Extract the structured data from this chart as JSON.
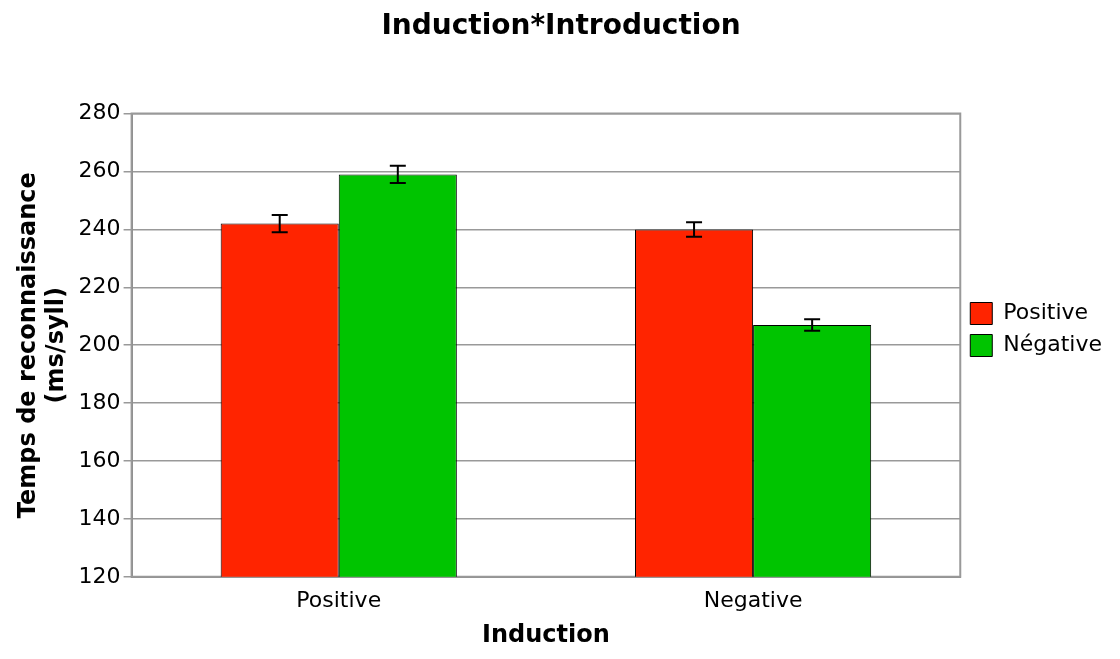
{
  "chart_data": {
    "type": "bar",
    "title": "Induction*Introduction",
    "xlabel": "Induction",
    "ylabel": "Temps de reconnaissance (ms/syll)",
    "categories": [
      "Positive",
      "Negative"
    ],
    "series": [
      {
        "name": "Positive",
        "color": "#ff2400",
        "values": [
          242,
          240
        ],
        "errors": [
          3,
          2.5
        ]
      },
      {
        "name": "Négative",
        "color": "#00c400",
        "values": [
          259,
          207
        ],
        "errors": [
          3,
          2
        ]
      }
    ],
    "ylim": [
      120,
      280
    ],
    "yticks": [
      120,
      140,
      160,
      180,
      200,
      220,
      240,
      260,
      280
    ],
    "grid": "y",
    "legend": "right"
  }
}
